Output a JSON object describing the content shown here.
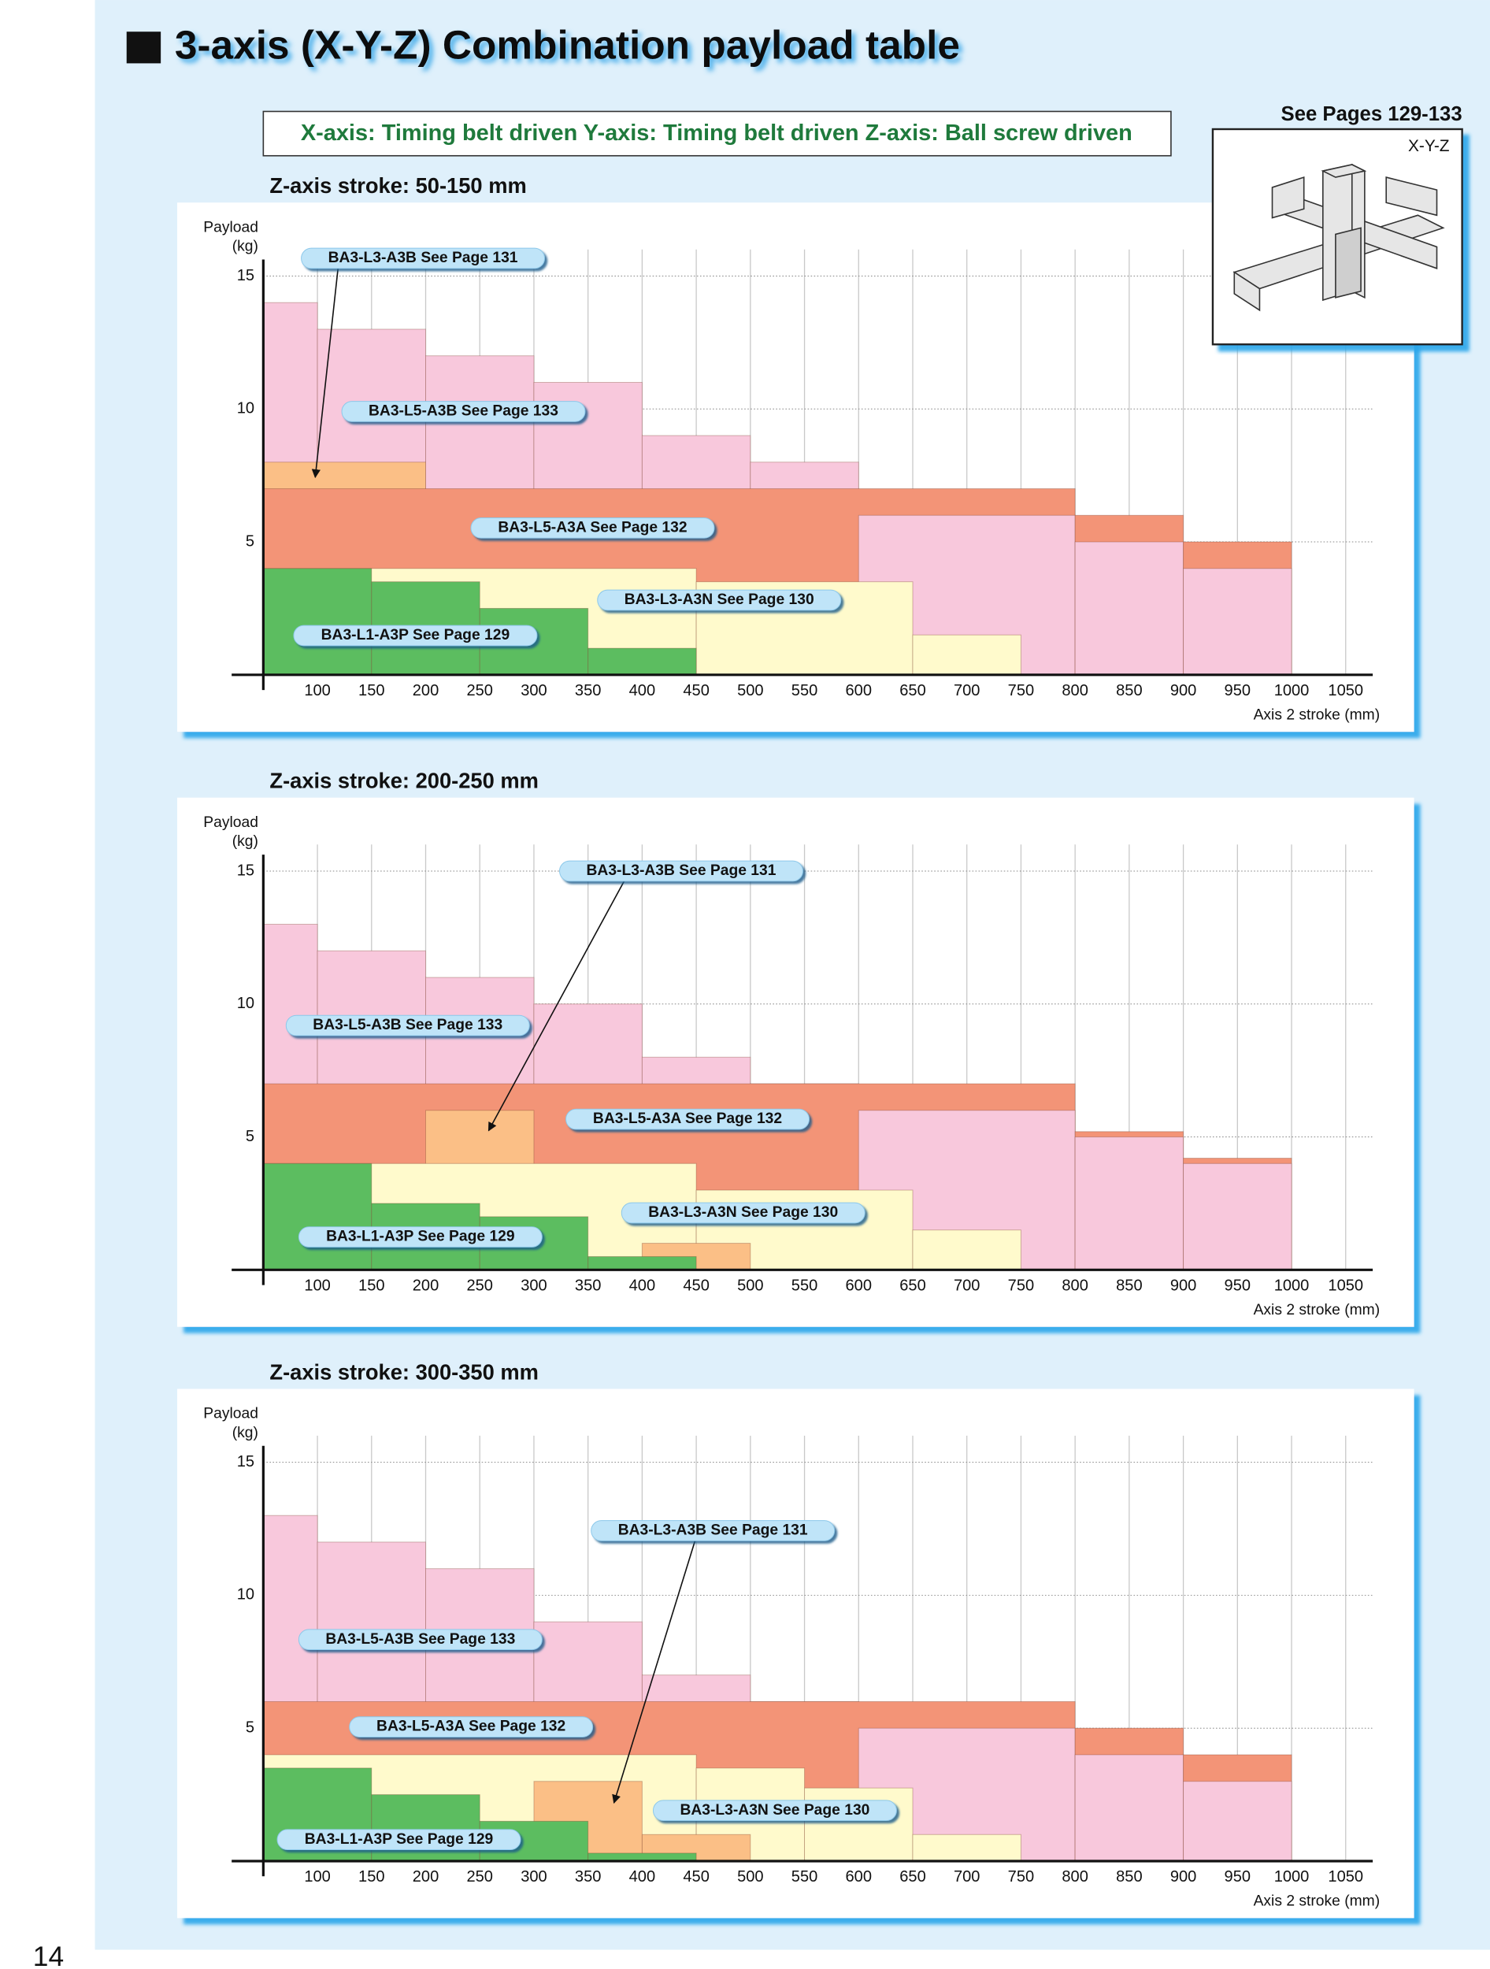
{
  "title": "3-axis (X-Y-Z) Combination payload table",
  "subtitle": "X-axis: Timing belt driven Y-axis: Timing belt driven Z-axis: Ball screw driven",
  "see_pages": "See Pages 129-133",
  "figure_label": "X-Y-Z",
  "page_number": "14",
  "chart_data": [
    {
      "type": "step-area",
      "title": "Z-axis stroke: 50-150 mm",
      "ylabel": [
        "Payload",
        "(kg)"
      ],
      "xlabel": "Axis 2 stroke (mm)",
      "xlim": [
        50,
        1075
      ],
      "ylim": [
        0,
        16
      ],
      "xticks": [
        100,
        150,
        200,
        250,
        300,
        350,
        400,
        450,
        500,
        550,
        600,
        650,
        700,
        750,
        800,
        850,
        900,
        950,
        1000,
        1050
      ],
      "yticks": [
        5,
        10,
        15
      ],
      "grid": true,
      "series": [
        {
          "name": "BA3-L5-A3B See Page 133",
          "color": "#f8c8dc",
          "bins": [
            50,
            100,
            200,
            300,
            400,
            500,
            600,
            800,
            900,
            1000
          ],
          "values": [
            14,
            13,
            12,
            11,
            9,
            8,
            6,
            5,
            4
          ]
        },
        {
          "name": "BA3-L3-A3B See Page 131",
          "color": "#fbbf86",
          "bins": [
            50,
            200
          ],
          "values": [
            8
          ]
        },
        {
          "name": "BA3-L5-A3A See Page 132",
          "color": "#f39477",
          "bins": [
            50,
            800,
            900,
            1000
          ],
          "values": [
            7,
            6,
            5
          ]
        },
        {
          "name": "BA3-L3-A3N See Page 130",
          "color": "#fffacc",
          "bins": [
            50,
            450,
            650,
            750
          ],
          "values": [
            4,
            3.5,
            1.5
          ]
        },
        {
          "name": "BA3-L1-A3P See Page 129",
          "color": "#5cbd60",
          "bins": [
            50,
            150,
            250,
            350,
            450
          ],
          "values": [
            4,
            3.5,
            2.5,
            1
          ]
        }
      ]
    },
    {
      "type": "step-area",
      "title": "Z-axis stroke: 200-250 mm",
      "ylabel": [
        "Payload",
        "(kg)"
      ],
      "xlabel": "Axis 2 stroke (mm)",
      "xlim": [
        50,
        1075
      ],
      "ylim": [
        0,
        16
      ],
      "xticks": [
        100,
        150,
        200,
        250,
        300,
        350,
        400,
        450,
        500,
        550,
        600,
        650,
        700,
        750,
        800,
        850,
        900,
        950,
        1000,
        1050
      ],
      "yticks": [
        5,
        10,
        15
      ],
      "grid": true,
      "series": [
        {
          "name": "BA3-L5-A3B See Page 133",
          "color": "#f8c8dc",
          "bins": [
            50,
            100,
            200,
            300,
            400,
            500,
            600,
            800,
            900,
            1000
          ],
          "values": [
            13,
            12,
            11,
            10,
            8,
            7,
            6,
            5,
            4
          ]
        },
        {
          "name": "BA3-L3-A3B See Page 131",
          "color": "#fbbf86",
          "bins": [
            200,
            300,
            400,
            500
          ],
          "values": [
            6,
            null,
            1
          ]
        },
        {
          "name": "BA3-L5-A3A See Page 132",
          "color": "#f39477",
          "bins": [
            50,
            800,
            900,
            1000
          ],
          "values": [
            7,
            5.2,
            4.2
          ]
        },
        {
          "name": "BA3-L3-A3N See Page 130",
          "color": "#fffacc",
          "bins": [
            50,
            450,
            650,
            750
          ],
          "values": [
            4,
            3,
            1.5
          ]
        },
        {
          "name": "BA3-L1-A3P See Page 129",
          "color": "#5cbd60",
          "bins": [
            50,
            150,
            250,
            350,
            450
          ],
          "values": [
            4,
            2.5,
            2,
            0.5
          ]
        }
      ]
    },
    {
      "type": "step-area",
      "title": "Z-axis stroke: 300-350 mm",
      "ylabel": [
        "Payload",
        "(kg)"
      ],
      "xlabel": "Axis 2 stroke (mm)",
      "xlim": [
        50,
        1075
      ],
      "ylim": [
        0,
        16
      ],
      "xticks": [
        100,
        150,
        200,
        250,
        300,
        350,
        400,
        450,
        500,
        550,
        600,
        650,
        700,
        750,
        800,
        850,
        900,
        950,
        1000,
        1050
      ],
      "yticks": [
        5,
        10,
        15
      ],
      "grid": true,
      "series": [
        {
          "name": "BA3-L5-A3B See Page 133",
          "color": "#f8c8dc",
          "bins": [
            50,
            100,
            200,
            300,
            400,
            500,
            600,
            800,
            900,
            1000
          ],
          "values": [
            13,
            12,
            11,
            9,
            7,
            6,
            5,
            4,
            3
          ]
        },
        {
          "name": "BA3-L3-A3B See Page 131",
          "color": "#fbbf86",
          "bins": [
            300,
            400,
            500
          ],
          "values": [
            3,
            1
          ]
        },
        {
          "name": "BA3-L5-A3A See Page 132",
          "color": "#f39477",
          "bins": [
            50,
            800,
            900,
            1000
          ],
          "values": [
            6,
            5,
            4
          ]
        },
        {
          "name": "BA3-L3-A3N See Page 130",
          "color": "#fffacc",
          "bins": [
            50,
            450,
            550,
            650,
            750
          ],
          "values": [
            4,
            3.5,
            2.75,
            1
          ]
        },
        {
          "name": "BA3-L1-A3P See Page 129",
          "color": "#5cbd60",
          "bins": [
            50,
            150,
            250,
            350,
            450
          ],
          "values": [
            3.5,
            2.5,
            1.5,
            0.3
          ]
        }
      ]
    }
  ]
}
